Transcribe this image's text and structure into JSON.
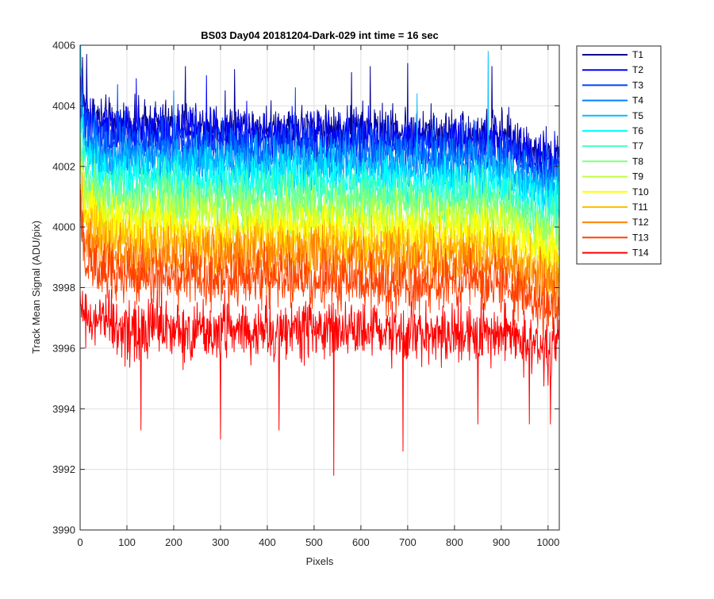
{
  "chart_data": {
    "type": "line",
    "title": "BS03 Day04 20181204-Dark-029 int time = 16 sec",
    "xlabel": "Pixels",
    "ylabel": "Track Mean Signal (ADU/pix)",
    "xlim": [
      0,
      1024
    ],
    "ylim": [
      3990,
      4006
    ],
    "xticks": [
      0,
      100,
      200,
      300,
      400,
      500,
      600,
      700,
      800,
      900,
      1000
    ],
    "yticks": [
      3990,
      3992,
      3994,
      3996,
      3998,
      4000,
      4002,
      4004,
      4006
    ],
    "grid": true,
    "legend_position": "outside-top-right",
    "n_points": 1024,
    "series": [
      {
        "name": "T1",
        "color": "#00008F",
        "mean": 4003.0,
        "noise": 0.75,
        "anchors": [
          [
            0,
            4005.0
          ],
          [
            10,
            4003.8
          ],
          [
            60,
            4003.4
          ],
          [
            300,
            4003.3
          ],
          [
            600,
            4003.2
          ],
          [
            900,
            4003.0
          ],
          [
            1000,
            4002.3
          ],
          [
            1024,
            4002.4
          ]
        ],
        "spikes": [
          [
            5,
            4005.6
          ],
          [
            14,
            4005.7
          ],
          [
            225,
            4005.3
          ],
          [
            330,
            4005.2
          ],
          [
            580,
            4005.1
          ],
          [
            620,
            4005.3
          ],
          [
            700,
            4005.4
          ],
          [
            880,
            4005.3
          ]
        ]
      },
      {
        "name": "T2",
        "color": "#0000FF",
        "mean": 4002.8,
        "noise": 0.75,
        "anchors": [
          [
            0,
            4004.8
          ],
          [
            10,
            4003.6
          ],
          [
            60,
            4003.2
          ],
          [
            300,
            4003.1
          ],
          [
            600,
            4003.0
          ],
          [
            900,
            4002.8
          ],
          [
            1000,
            4002.1
          ],
          [
            1024,
            4002.2
          ]
        ],
        "spikes": [
          [
            120,
            4004.9
          ],
          [
            270,
            4005.0
          ]
        ]
      },
      {
        "name": "T3",
        "color": "#0040FF",
        "mean": 4002.5,
        "noise": 0.75,
        "anchors": [
          [
            0,
            4004.5
          ],
          [
            10,
            4003.2
          ],
          [
            60,
            4002.8
          ],
          [
            300,
            4002.7
          ],
          [
            600,
            4002.6
          ],
          [
            900,
            4002.5
          ],
          [
            1000,
            4001.8
          ],
          [
            1024,
            4001.9
          ]
        ],
        "spikes": [
          [
            80,
            4004.7
          ],
          [
            460,
            4004.6
          ]
        ]
      },
      {
        "name": "T4",
        "color": "#0080FF",
        "mean": 4002.2,
        "noise": 0.75,
        "anchors": [
          [
            0,
            4004.3
          ],
          [
            10,
            4002.8
          ],
          [
            60,
            4002.4
          ],
          [
            300,
            4002.3
          ],
          [
            600,
            4002.2
          ],
          [
            900,
            4002.1
          ],
          [
            1000,
            4001.4
          ],
          [
            1024,
            4001.5
          ]
        ],
        "spikes": [
          [
            200,
            4004.5
          ]
        ]
      },
      {
        "name": "T5",
        "color": "#00BFFF",
        "mean": 4001.9,
        "noise": 0.75,
        "anchors": [
          [
            0,
            4005.8
          ],
          [
            10,
            4002.5
          ],
          [
            60,
            4002.1
          ],
          [
            300,
            4002.0
          ],
          [
            600,
            4001.9
          ],
          [
            900,
            4001.8
          ],
          [
            1000,
            4001.1
          ],
          [
            1024,
            4001.2
          ]
        ],
        "spikes": [
          [
            872,
            4005.8
          ],
          [
            720,
            4004.4
          ]
        ]
      },
      {
        "name": "T6",
        "color": "#00FFFF",
        "mean": 4001.5,
        "noise": 0.75,
        "anchors": [
          [
            0,
            4003.6
          ],
          [
            10,
            4002.1
          ],
          [
            60,
            4001.7
          ],
          [
            300,
            4001.6
          ],
          [
            600,
            4001.5
          ],
          [
            900,
            4001.4
          ],
          [
            1000,
            4000.7
          ],
          [
            1024,
            4000.8
          ]
        ],
        "spikes": []
      },
      {
        "name": "T7",
        "color": "#40FFBF",
        "mean": 4001.1,
        "noise": 0.75,
        "anchors": [
          [
            0,
            4003.2
          ],
          [
            10,
            4001.7
          ],
          [
            60,
            4001.3
          ],
          [
            300,
            4001.2
          ],
          [
            600,
            4001.1
          ],
          [
            900,
            4001.0
          ],
          [
            1000,
            4000.3
          ],
          [
            1024,
            4000.4
          ]
        ],
        "spikes": []
      },
      {
        "name": "T8",
        "color": "#80FF80",
        "mean": 4000.7,
        "noise": 0.75,
        "anchors": [
          [
            0,
            4002.9
          ],
          [
            10,
            4001.3
          ],
          [
            60,
            4000.9
          ],
          [
            300,
            4000.8
          ],
          [
            600,
            4000.7
          ],
          [
            900,
            4000.6
          ],
          [
            1000,
            3999.9
          ],
          [
            1024,
            4000.0
          ]
        ],
        "spikes": []
      },
      {
        "name": "T9",
        "color": "#BFFF40",
        "mean": 4000.3,
        "noise": 0.75,
        "anchors": [
          [
            0,
            4002.5
          ],
          [
            10,
            4000.9
          ],
          [
            60,
            4000.5
          ],
          [
            300,
            4000.4
          ],
          [
            600,
            4000.3
          ],
          [
            900,
            4000.2
          ],
          [
            1000,
            3999.5
          ],
          [
            1024,
            3999.6
          ]
        ],
        "spikes": []
      },
      {
        "name": "T10",
        "color": "#FFFF00",
        "mean": 3999.9,
        "noise": 0.75,
        "anchors": [
          [
            0,
            4002.1
          ],
          [
            10,
            4000.5
          ],
          [
            60,
            4000.1
          ],
          [
            300,
            4000.0
          ],
          [
            600,
            3999.9
          ],
          [
            900,
            3999.8
          ],
          [
            1000,
            3999.1
          ],
          [
            1024,
            3999.2
          ]
        ],
        "spikes": []
      },
      {
        "name": "T11",
        "color": "#FFBF00",
        "mean": 3999.4,
        "noise": 0.75,
        "anchors": [
          [
            0,
            4001.6
          ],
          [
            10,
            4000.0
          ],
          [
            60,
            3999.6
          ],
          [
            300,
            3999.5
          ],
          [
            600,
            3999.4
          ],
          [
            900,
            3999.3
          ],
          [
            1000,
            3998.6
          ],
          [
            1024,
            3998.7
          ]
        ],
        "spikes": []
      },
      {
        "name": "T12",
        "color": "#FF8000",
        "mean": 3998.9,
        "noise": 0.8,
        "anchors": [
          [
            0,
            4001.2
          ],
          [
            10,
            3999.5
          ],
          [
            60,
            3999.1
          ],
          [
            300,
            3999.0
          ],
          [
            600,
            3998.9
          ],
          [
            900,
            3998.8
          ],
          [
            1000,
            3998.1
          ],
          [
            1024,
            3998.2
          ]
        ],
        "spikes": []
      },
      {
        "name": "T13",
        "color": "#FF4000",
        "mean": 3998.2,
        "noise": 0.85,
        "anchors": [
          [
            0,
            4000.5
          ],
          [
            10,
            3998.8
          ],
          [
            60,
            3998.4
          ],
          [
            300,
            3998.3
          ],
          [
            600,
            3998.2
          ],
          [
            900,
            3998.1
          ],
          [
            1000,
            3997.4
          ],
          [
            1024,
            3997.5
          ]
        ],
        "spikes": []
      },
      {
        "name": "T14",
        "color": "#FF0000",
        "mean": 3996.6,
        "noise": 0.9,
        "anchors": [
          [
            0,
            3997.5
          ],
          [
            10,
            3997.0
          ],
          [
            60,
            3996.7
          ],
          [
            300,
            3996.6
          ],
          [
            600,
            3996.6
          ],
          [
            900,
            3996.5
          ],
          [
            1000,
            3996.0
          ],
          [
            1024,
            3996.2
          ]
        ],
        "spikes": [
          [
            542,
            3991.8
          ],
          [
            690,
            3992.6
          ],
          [
            300,
            3993.0
          ],
          [
            960,
            3993.4
          ],
          [
            130,
            3993.3
          ],
          [
            425,
            3993.3
          ],
          [
            850,
            3993.5
          ],
          [
            960,
            3993.5
          ],
          [
            1005,
            3993.5
          ]
        ]
      }
    ]
  }
}
